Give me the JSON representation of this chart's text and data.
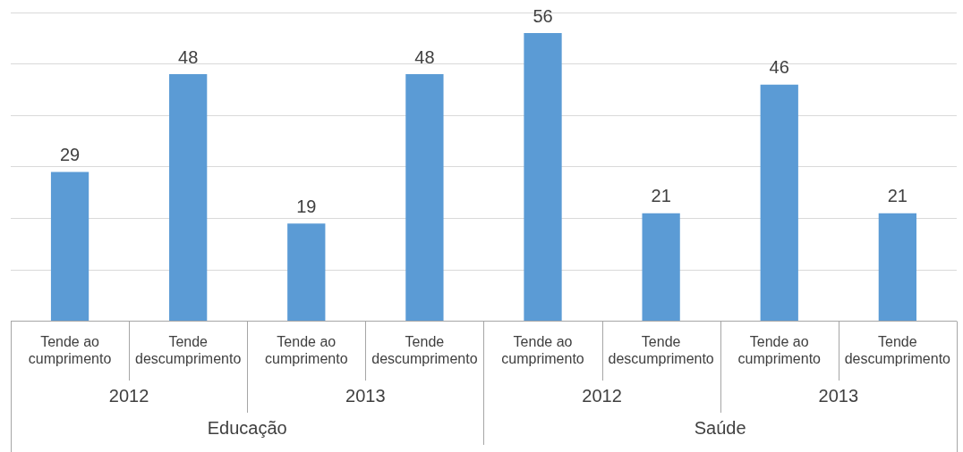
{
  "chart_data": {
    "type": "bar",
    "categories": [
      "Tende ao cumprimento",
      "Tende descumprimento",
      "Tende ao cumprimento",
      "Tende descumprimento",
      "Tende ao cumprimento",
      "Tende descumprimento",
      "Tende ao cumprimento",
      "Tende descumprimento"
    ],
    "values": [
      29,
      48,
      19,
      48,
      56,
      21,
      46,
      21
    ],
    "color": "#5b9bd5",
    "data_labels": true,
    "ylim": [
      0,
      60
    ],
    "yticks": [
      {
        "value": 0,
        "label": null
      },
      {
        "value": 10,
        "label": null
      },
      {
        "value": 20,
        "label": null
      },
      {
        "value": 30,
        "label": null
      },
      {
        "value": 40,
        "label": null
      },
      {
        "value": 50,
        "label": null
      },
      {
        "value": 60,
        "label": null
      }
    ],
    "grid": "y",
    "tick_labels": "x",
    "legend": false,
    "annotations": [
      "2012",
      "2013",
      "2012",
      "2013",
      "Educação",
      "Saúde"
    ]
  }
}
